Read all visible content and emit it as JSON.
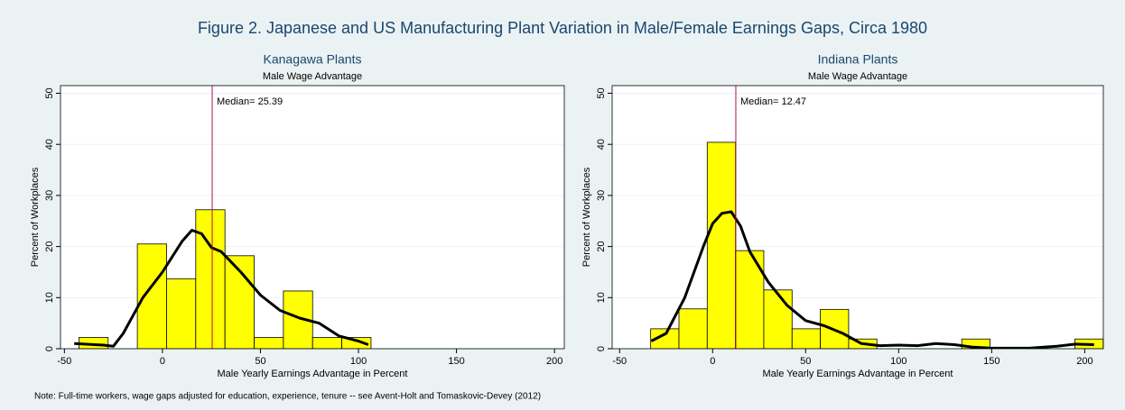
{
  "title": "Figure 2. Japanese and US Manufacturing Plant Variation in Male/Female Earnings Gaps, Circa 1980",
  "note": "Note: Full-time workers, wage gaps adjusted for education, experience, tenure -- see Avent-Holt and Tomaskovic-Devey (2012)",
  "chart_data": [
    {
      "type": "histogram",
      "title": "Kanagawa Plants",
      "subtitle": "Male Wage Advantage",
      "xlabel": "Male Yearly Earnings Advantage in Percent",
      "ylabel": "Percent of Workplaces",
      "bins": [
        -42.6,
        -27.7,
        -12.8,
        2.1,
        17.0,
        31.9,
        46.8,
        61.7,
        76.6,
        91.5,
        106.4
      ],
      "values": [
        2.2,
        0,
        20.5,
        13.7,
        27.2,
        18.2,
        2.2,
        11.3,
        2.2,
        2.2
      ],
      "color": "#ffff00",
      "line_color": "#000000",
      "xlim": [
        -52,
        205
      ],
      "xticks": [
        -50,
        0,
        50,
        100,
        150,
        200
      ],
      "ylim": [
        0,
        51.5
      ],
      "yticks": [
        0,
        10,
        20,
        30,
        40,
        50
      ],
      "grid": true,
      "density": {
        "x": [
          -45,
          -30,
          -25,
          -20,
          -10,
          0,
          10,
          15,
          20,
          25,
          30,
          40,
          50,
          60,
          70,
          80,
          90,
          100,
          105
        ],
        "y": [
          1,
          0.7,
          0.5,
          3,
          10,
          15,
          21,
          23.2,
          22.5,
          19.8,
          19,
          15,
          10.5,
          7.5,
          6,
          5,
          2.5,
          1.5,
          0.8
        ]
      },
      "median": {
        "value": 25.39,
        "label": "Median= 25.39"
      }
    },
    {
      "type": "histogram",
      "title": "Indiana Plants",
      "subtitle": "Male Wage Advantage",
      "xlabel": "Male Yearly Earnings Advantage in Percent",
      "ylabel": "Percent of Workplaces",
      "bins": [
        -33.3,
        -18.1,
        -2.9,
        12.3,
        27.5,
        42.7,
        57.9,
        73.1,
        88.3,
        103.5,
        118.7,
        133.9,
        149.1,
        164.3,
        179.5,
        194.7,
        209.9
      ],
      "values": [
        3.9,
        7.8,
        40.4,
        19.2,
        11.5,
        3.9,
        7.7,
        1.9,
        0,
        0,
        0,
        1.9,
        0,
        0,
        0,
        1.9
      ],
      "color": "#ffff00",
      "line_color": "#000000",
      "xlim": [
        -54,
        210
      ],
      "xticks": [
        -50,
        0,
        50,
        100,
        150,
        200
      ],
      "ylim": [
        0,
        51.5
      ],
      "yticks": [
        0,
        10,
        20,
        30,
        40,
        50
      ],
      "grid": true,
      "density": {
        "x": [
          -33,
          -25,
          -15,
          -5,
          0,
          5,
          10,
          15,
          20,
          30,
          40,
          50,
          60,
          70,
          80,
          90,
          100,
          110,
          120,
          130,
          140,
          150,
          170,
          185,
          195,
          205
        ],
        "y": [
          1.5,
          3,
          10,
          20,
          24.5,
          26.5,
          26.8,
          24,
          19,
          13,
          8.5,
          5.5,
          4.5,
          3,
          1,
          0.6,
          0.7,
          0.6,
          1,
          0.8,
          0.3,
          0.1,
          0.1,
          0.5,
          0.9,
          0.8
        ]
      },
      "median": {
        "value": 12.47,
        "label": "Median= 12.47"
      }
    }
  ]
}
